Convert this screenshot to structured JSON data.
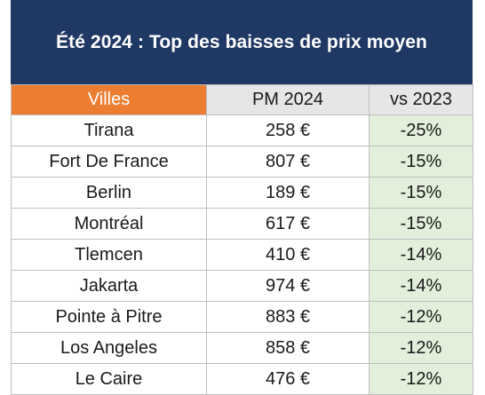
{
  "title": "Été 2024 : Top des baisses de prix moyen",
  "columns": [
    "Villes",
    "PM 2024",
    "vs 2023"
  ],
  "rows": [
    {
      "city": "Tirana",
      "price": "258 €",
      "change": "-25%"
    },
    {
      "city": "Fort De France",
      "price": "807 €",
      "change": "-15%"
    },
    {
      "city": "Berlin",
      "price": "189 €",
      "change": "-15%"
    },
    {
      "city": "Montréal",
      "price": "617 €",
      "change": "-15%"
    },
    {
      "city": "Tlemcen",
      "price": "410 €",
      "change": "-14%"
    },
    {
      "city": "Jakarta",
      "price": "974 €",
      "change": "-14%"
    },
    {
      "city": "Pointe à Pitre",
      "price": "883 €",
      "change": "-12%"
    },
    {
      "city": "Los Angeles",
      "price": "858 €",
      "change": "-12%"
    },
    {
      "city": "Le Caire",
      "price": "476 €",
      "change": "-12%"
    }
  ],
  "colors": {
    "title_background": "#1f3864",
    "title_text": "#ffffff",
    "villes_header_background": "#ed7d31",
    "header_background": "#e7e6e6",
    "change_cell_background": "#e2efda",
    "grid_lines": "#bfbfbf"
  }
}
